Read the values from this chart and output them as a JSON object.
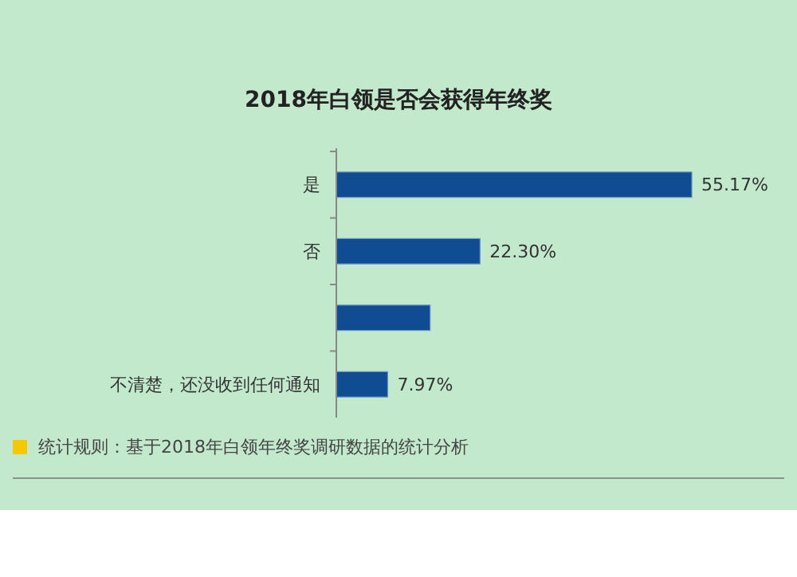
{
  "chart_data": {
    "type": "bar",
    "orientation": "horizontal",
    "title": "2018年白领是否会获得年终奖",
    "categories": [
      "是",
      "否",
      null,
      "不清楚，还没收到任何通知"
    ],
    "values": [
      55.17,
      22.3,
      14.56,
      7.97
    ],
    "value_labels": [
      "55.17%",
      "22.30%",
      null,
      "7.97%"
    ],
    "color": "#0f4c92",
    "annotations": [
      "统计规则：基于2018年白领年终奖调研数据的统计分析"
    ]
  }
}
